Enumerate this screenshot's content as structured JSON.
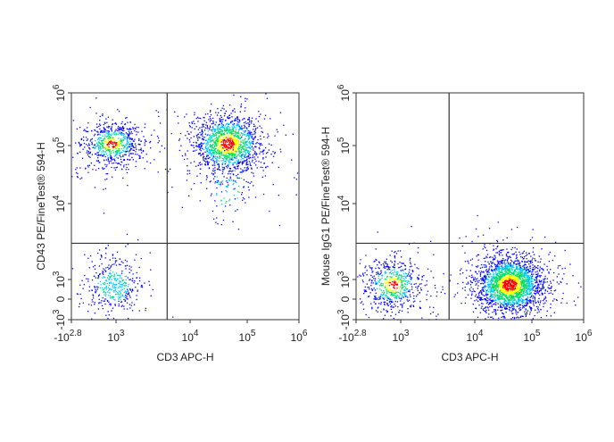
{
  "chart_data": [
    {
      "type": "scatter",
      "subtype": "flow-cytometry-density-dot-plot",
      "xlabel": "CD3 APC-H",
      "ylabel": "CD43 PE/FineTest® 594-H",
      "x_scale": "biexponential",
      "y_scale": "biexponential",
      "xlim": [
        -631,
        1000000
      ],
      "ylim": [
        -1000,
        1000000
      ],
      "x_ticks": [
        {
          "value": -631,
          "base": "-10",
          "exp": "2.8"
        },
        {
          "value": 1000,
          "base": "10",
          "exp": "3"
        },
        {
          "value": 10000,
          "base": "10",
          "exp": "4"
        },
        {
          "value": 100000,
          "base": "10",
          "exp": "5"
        },
        {
          "value": 1000000,
          "base": "10",
          "exp": "6"
        }
      ],
      "y_ticks": [
        {
          "value": -1000,
          "base": "-10",
          "exp": "3"
        },
        {
          "value": 0,
          "base": "0",
          "exp": ""
        },
        {
          "value": 1000,
          "base": "10",
          "exp": "3"
        },
        {
          "value": 10000,
          "base": "10",
          "exp": "4"
        },
        {
          "value": 100000,
          "base": "10",
          "exp": "5"
        },
        {
          "value": 1000000,
          "base": "10",
          "exp": "6"
        }
      ],
      "quadrant_gate": {
        "x": 4900,
        "y": 3000
      },
      "populations": [
        {
          "x": 850,
          "y": 110000,
          "count": 750,
          "spread_x": 0.07,
          "spread_y": 0.05
        },
        {
          "x": 900,
          "y": 700,
          "count": 420,
          "spread_x": 0.06,
          "spread_y": 0.06
        },
        {
          "x": 45000,
          "y": 110000,
          "count": 1500,
          "spread_x": 0.07,
          "spread_y": 0.06
        },
        {
          "x": 45000,
          "y": 20000,
          "count": 120,
          "spread_x": 0.06,
          "spread_y": 0.08
        }
      ],
      "grid": false
    },
    {
      "type": "scatter",
      "subtype": "flow-cytometry-density-dot-plot",
      "xlabel": "CD3 APC-H",
      "ylabel": "Mouse IgG1 PE/FineTest® 594-H",
      "x_scale": "biexponential",
      "y_scale": "biexponential",
      "xlim": [
        -631,
        1000000
      ],
      "ylim": [
        -1000,
        1000000
      ],
      "x_ticks": [
        {
          "value": -631,
          "base": "-10",
          "exp": "2.8"
        },
        {
          "value": 1000,
          "base": "10",
          "exp": "3"
        },
        {
          "value": 10000,
          "base": "10",
          "exp": "4"
        },
        {
          "value": 100000,
          "base": "10",
          "exp": "5"
        },
        {
          "value": 1000000,
          "base": "10",
          "exp": "6"
        }
      ],
      "y_ticks": [
        {
          "value": -1000,
          "base": "-10",
          "exp": "3"
        },
        {
          "value": 0,
          "base": "0",
          "exp": ""
        },
        {
          "value": 1000,
          "base": "10",
          "exp": "3"
        },
        {
          "value": 10000,
          "base": "10",
          "exp": "4"
        },
        {
          "value": 100000,
          "base": "10",
          "exp": "5"
        },
        {
          "value": 1000000,
          "base": "10",
          "exp": "6"
        }
      ],
      "quadrant_gate": {
        "x": 4500,
        "y": 3000
      },
      "populations": [
        {
          "x": 700,
          "y": 750,
          "count": 650,
          "spread_x": 0.07,
          "spread_y": 0.06
        },
        {
          "x": 40000,
          "y": 750,
          "count": 2400,
          "spread_x": 0.07,
          "spread_y": 0.06
        }
      ],
      "grid": false
    }
  ],
  "colors": {
    "low": "#0000ff",
    "mid_low": "#00c8ff",
    "mid": "#00e060",
    "mid_high": "#ffff00",
    "high": "#ff0000",
    "axis": "#333333"
  }
}
